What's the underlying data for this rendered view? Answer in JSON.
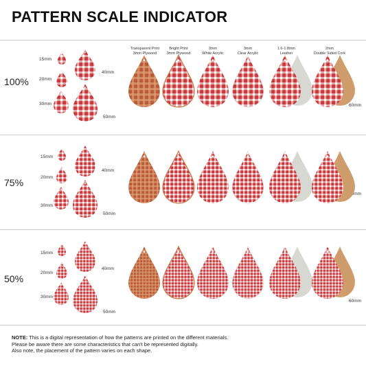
{
  "title": "PATTERN SCALE INDICATOR",
  "scales": [
    "100%",
    "75%",
    "50%"
  ],
  "size_labels": [
    "15mm",
    "20mm",
    "30mm",
    "40mm",
    "50mm",
    "60mm"
  ],
  "materials": [
    {
      "line1": "Transparent Print",
      "line2": "3mm Plywood"
    },
    {
      "line1": "Bright Print",
      "line2": "3mm Plywood"
    },
    {
      "line1": "3mm",
      "line2": "White Acrylic"
    },
    {
      "line1": "3mm",
      "line2": "Clear Acrylic"
    },
    {
      "line1": "1.6-1.8mm",
      "line2": "Leather"
    },
    {
      "line1": "2mm",
      "line2": "Double Sided Cork"
    }
  ],
  "note": {
    "label": "NOTE:",
    "line1": " This is a digital representation of how the patterns are printed on the different materials.",
    "line2": "Please be aware there are some characteristics that can't be represented digitally.",
    "line3": "Also note, the placement of the pattern varies on each shape."
  },
  "colors": {
    "gingham_red": "#c8383b",
    "gingham_dark": "#a9282b",
    "plywood": "#c77b4e",
    "leather": "#d8d8d2",
    "cork": "#cf9d6c"
  }
}
